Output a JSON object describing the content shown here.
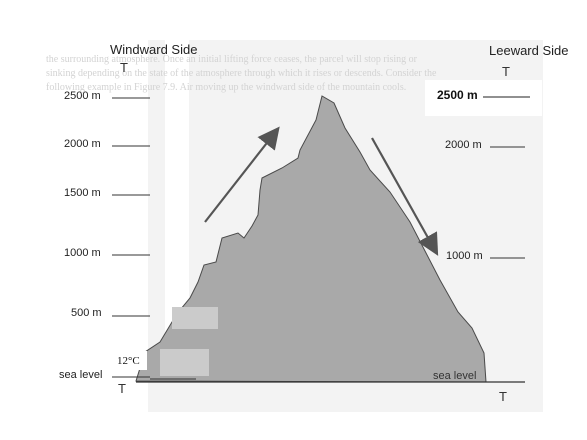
{
  "windward": {
    "title": "Windward Side",
    "T_top": "T",
    "T_bottom": "T",
    "elevations": [
      "2500 m",
      "2000 m",
      "1500 m",
      "1000 m",
      "500 m"
    ],
    "sea_level": "sea level",
    "temperature": "12°C"
  },
  "leeward": {
    "title": "Leeward Side",
    "T_top": "T",
    "T_bottom": "T",
    "elevations": [
      "2500 m",
      "2000 m",
      "1000 m"
    ],
    "sea_level": "sea level"
  },
  "background_text": [
    "the surrounding atmosphere. Once an initial lifting force ceases, the parcel will stop rising or",
    "sinking depending on the state of the atmosphere through which it rises or descends. Consider the",
    "following example in Figure 7.9. Air moving up the windward side of the mountain cools."
  ],
  "colors": {
    "mountain_fill": "#a9a9a9",
    "mountain_stroke": "#4a4a4a",
    "arrow": "#555555",
    "tick_line": "#333333",
    "background_text": "#cfcfcf"
  }
}
